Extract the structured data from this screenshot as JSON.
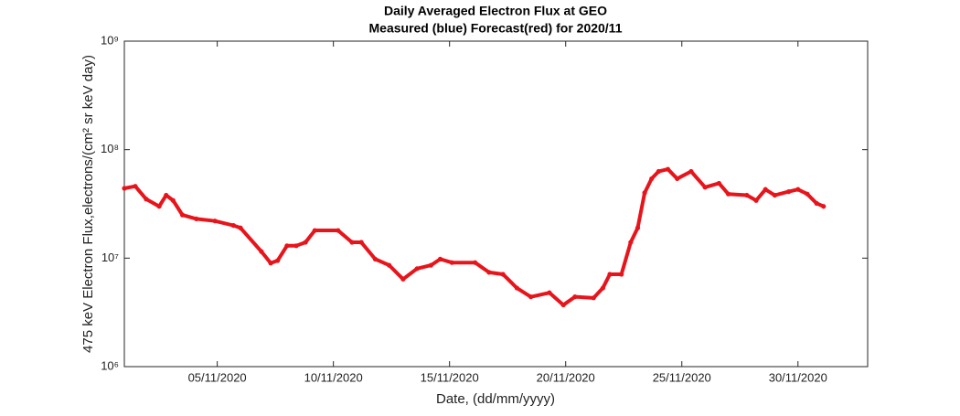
{
  "chart_data": {
    "type": "scatter",
    "title": "Daily Averaged Electron Flux at GEO",
    "subtitle": "Measured (blue) Forecast(red) for 2020/11",
    "x_label": "Date, (dd/mm/yyyy)",
    "y_label": "475 keV Electron Flux,electrons/(cm² sr keV day)",
    "log_y": true,
    "xlim": [
      1,
      33
    ],
    "xticks": [
      {
        "value": 5,
        "label": "05/11/2020"
      },
      {
        "value": 10,
        "label": "10/11/2020"
      },
      {
        "value": 15,
        "label": "15/11/2020"
      },
      {
        "value": 20,
        "label": "20/11/2020"
      },
      {
        "value": 25,
        "label": "25/11/2020"
      },
      {
        "value": 30,
        "label": "30/11/2020"
      }
    ],
    "ylim": [
      1000000,
      1000000000
    ],
    "yticks": [
      {
        "value": 1000000,
        "label": "10⁶"
      },
      {
        "value": 10000000,
        "label": "10⁷"
      },
      {
        "value": 100000000,
        "label": "10⁸"
      },
      {
        "value": 1000000000,
        "label": "10⁹"
      }
    ],
    "series": [
      {
        "name": "Forecast",
        "color": "#e8141b",
        "x": [
          1.0,
          1.47,
          1.94,
          2.5,
          2.8,
          3.1,
          3.5,
          4.1,
          4.9,
          5.7,
          6.0,
          6.9,
          7.3,
          7.6,
          8.0,
          8.4,
          8.8,
          9.2,
          10.2,
          10.8,
          11.2,
          11.8,
          12.4,
          13.0,
          13.6,
          14.2,
          14.6,
          15.1,
          16.1,
          16.7,
          17.3,
          17.9,
          18.5,
          19.3,
          19.9,
          20.4,
          21.2,
          21.6,
          21.9,
          22.4,
          22.8,
          23.1,
          23.4,
          23.7,
          24.0,
          24.4,
          24.8,
          25.4,
          26.0,
          26.6,
          27.0,
          27.8,
          28.2,
          28.6,
          29.0,
          29.6,
          30.0,
          30.4,
          30.8,
          31.1
        ],
        "values": [
          44000000,
          46000000,
          35000000,
          30000000,
          38000000,
          34000000,
          25000000,
          23000000,
          22000000,
          20000000,
          19000000,
          11500000,
          9000000,
          9500000,
          13000000,
          13000000,
          14000000,
          18000000,
          18000000,
          14000000,
          14000000,
          9800000,
          8600000,
          6400000,
          8000000,
          8600000,
          9800000,
          9100000,
          9100000,
          7400000,
          7100000,
          5300000,
          4400000,
          4800000,
          3700000,
          4400000,
          4300000,
          5300000,
          7100000,
          7100000,
          14000000,
          19000000,
          40000000,
          54000000,
          63000000,
          66000000,
          54000000,
          63000000,
          45000000,
          49000000,
          39000000,
          38000000,
          34000000,
          43000000,
          38000000,
          41000000,
          43000000,
          39000000,
          32000000,
          30000000
        ]
      }
    ]
  }
}
